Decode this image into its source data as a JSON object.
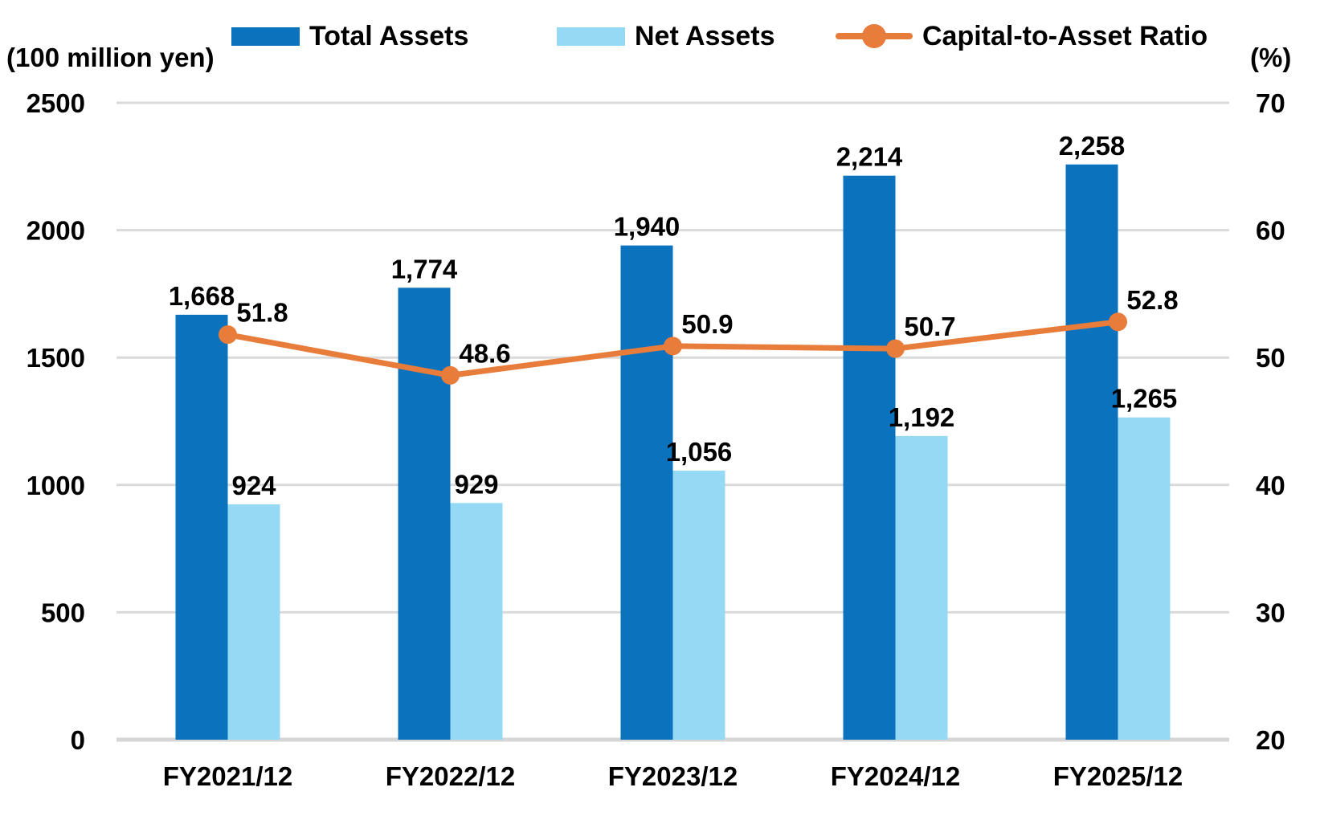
{
  "chart_data": {
    "type": "combo-bar-line",
    "title": "",
    "categories": [
      "FY2021/12",
      "FY2022/12",
      "FY2023/12",
      "FY2024/12",
      "FY2025/12"
    ],
    "series": [
      {
        "name": "Total Assets",
        "type": "bar",
        "axis": "left",
        "color": "#0b72be",
        "values": [
          1668,
          1774,
          1940,
          2214,
          2258
        ],
        "value_labels": [
          "1,668",
          "1,774",
          "1,940",
          "2,214",
          "2,258"
        ]
      },
      {
        "name": "Net Assets",
        "type": "bar",
        "axis": "left",
        "color": "#95d9f5",
        "values": [
          924,
          929,
          1056,
          1192,
          1265
        ],
        "value_labels": [
          "924",
          "929",
          "1,056",
          "1,192",
          "1,265"
        ]
      },
      {
        "name": "Capital-to-Asset Ratio",
        "type": "line",
        "axis": "right",
        "color": "#e87c3a",
        "values": [
          51.8,
          48.6,
          50.9,
          50.7,
          52.8
        ],
        "value_labels": [
          "51.8",
          "48.6",
          "50.9",
          "50.7",
          "52.8"
        ]
      }
    ],
    "left_axis": {
      "unit_label": "(100 million yen)",
      "min": 0,
      "max": 2500,
      "ticks": [
        0,
        500,
        1000,
        1500,
        2000,
        2500
      ],
      "tick_labels": [
        "0",
        "500",
        "1000",
        "1500",
        "2000",
        "2500"
      ]
    },
    "right_axis": {
      "unit_label": "(%)",
      "min": 20,
      "max": 70,
      "ticks": [
        20,
        30,
        40,
        50,
        60,
        70
      ],
      "tick_labels": [
        "20",
        "30",
        "40",
        "50",
        "60",
        "70"
      ]
    },
    "grid": true,
    "legend_position": "top",
    "colors": {
      "grid": "#dadada",
      "axis_line": "#d6d6d6",
      "text": "#000000",
      "background": "#ffffff"
    }
  }
}
